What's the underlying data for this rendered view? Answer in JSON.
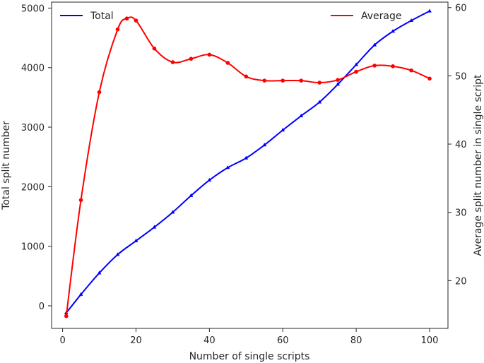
{
  "chart_data": {
    "type": "line",
    "xlabel": "Number of single scripts",
    "ylabel_left": "Total split number",
    "ylabel_right": "Average split number in single script",
    "xlim": [
      -3,
      105
    ],
    "ylim_left": [
      -380,
      5100
    ],
    "ylim_right": [
      13.0,
      60.8
    ],
    "x_ticks": [
      0,
      20,
      40,
      60,
      80,
      100
    ],
    "y_ticks_left": [
      0,
      1000,
      2000,
      3000,
      4000,
      5000
    ],
    "y_ticks_right": [
      20,
      30,
      40,
      50,
      60
    ],
    "legend": {
      "left_entry_position": "upper-left",
      "right_entry_position": "upper-right"
    },
    "series": [
      {
        "name": "Total",
        "axis": "left",
        "color": "#0000ff",
        "marker": "triangle",
        "points": [
          [
            1,
            -120
          ],
          [
            5,
            190
          ],
          [
            10,
            550
          ],
          [
            15,
            860
          ],
          [
            20,
            1090
          ],
          [
            25,
            1320
          ],
          [
            30,
            1570
          ],
          [
            35,
            1850
          ],
          [
            40,
            2110
          ],
          [
            45,
            2320
          ],
          [
            50,
            2480
          ],
          [
            55,
            2700
          ],
          [
            60,
            2950
          ],
          [
            65,
            3190
          ],
          [
            70,
            3420
          ],
          [
            75,
            3720
          ],
          [
            80,
            4050
          ],
          [
            85,
            4380
          ],
          [
            90,
            4610
          ],
          [
            95,
            4790
          ],
          [
            100,
            4950
          ]
        ]
      },
      {
        "name": "Average",
        "axis": "right",
        "color": "#ff0000",
        "marker": "circle",
        "points": [
          [
            1,
            14.8
          ],
          [
            5,
            31.8
          ],
          [
            10,
            47.6
          ],
          [
            15,
            56.8
          ],
          [
            17.5,
            58.4
          ],
          [
            20,
            58.1
          ],
          [
            25,
            54.0
          ],
          [
            30,
            52.0
          ],
          [
            35,
            52.5
          ],
          [
            40,
            53.1
          ],
          [
            45,
            51.9
          ],
          [
            50,
            49.9
          ],
          [
            55,
            49.3
          ],
          [
            60,
            49.3
          ],
          [
            65,
            49.3
          ],
          [
            70,
            49.0
          ],
          [
            75,
            49.4
          ],
          [
            80,
            50.6
          ],
          [
            85,
            51.5
          ],
          [
            90,
            51.4
          ],
          [
            95,
            50.8
          ],
          [
            100,
            49.6
          ]
        ]
      }
    ]
  }
}
